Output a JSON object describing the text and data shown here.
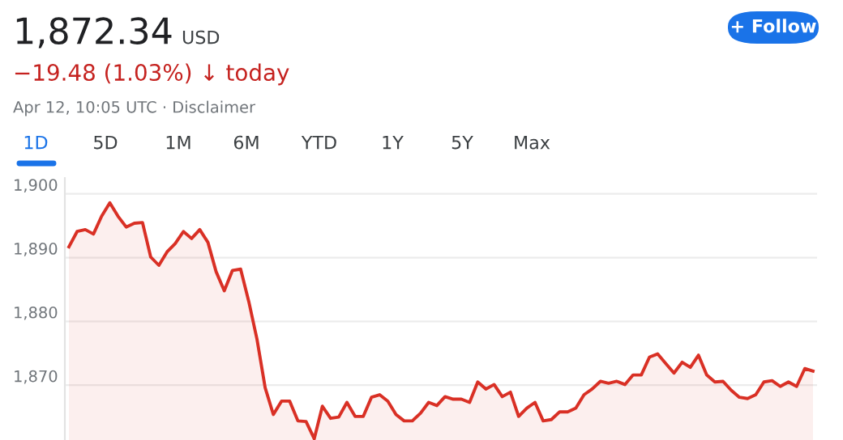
{
  "chart_data": {
    "type": "area",
    "annotations": [
      "1,872.34",
      "USD",
      "−19.48 (1.03%) ↓ today",
      "Apr 12, 10:05 UTC · Disclaimer",
      "1D",
      "5D",
      "1M",
      "6M",
      "YTD",
      "1Y",
      "5Y",
      "Max",
      "+ Follow"
    ],
    "categories": [
      null,
      null,
      null,
      null,
      null,
      null,
      null,
      null,
      null,
      null,
      null,
      null,
      null,
      null,
      null,
      null,
      null,
      null,
      null,
      null,
      null,
      null,
      null,
      null,
      null,
      null,
      null,
      null,
      null,
      null,
      null,
      null,
      null,
      null,
      null,
      null,
      null,
      null,
      null,
      null,
      null,
      null,
      null,
      null,
      null,
      null,
      null,
      null,
      null,
      null,
      null,
      null,
      null,
      null,
      null,
      null,
      null,
      null,
      null,
      null,
      null,
      null,
      null,
      null,
      null,
      null,
      null,
      null,
      null,
      null,
      null,
      null,
      null,
      null,
      null,
      null,
      null,
      null,
      null,
      null,
      null,
      null,
      null,
      null,
      null,
      null,
      null,
      null,
      null,
      null,
      null,
      null
    ],
    "series": [
      {
        "color": "#d93025",
        "values": [
          1891.7,
          1894.1,
          1894.4,
          1893.7,
          1896.5,
          1898.6,
          1896.5,
          1894.8,
          1895.4,
          1895.5,
          1890.1,
          1888.8,
          1890.9,
          1892.2,
          1894.1,
          1893.0,
          1894.4,
          1892.4,
          1887.8,
          1884.8,
          1888.0,
          1888.2,
          1883.1,
          1877.2,
          1869.6,
          1865.4,
          1867.5,
          1867.5,
          1864.4,
          1864.3,
          1861.6,
          1866.7,
          1864.8,
          1865.0,
          1867.3,
          1865.1,
          1865.1,
          1868.1,
          1868.5,
          1867.5,
          1865.4,
          1864.4,
          1864.4,
          1865.6,
          1867.3,
          1866.8,
          1868.2,
          1867.8,
          1867.8,
          1867.3,
          1870.5,
          1869.4,
          1870.1,
          1868.2,
          1868.9,
          1865.1,
          1866.4,
          1867.3,
          1864.4,
          1864.6,
          1865.8,
          1865.8,
          1866.4,
          1868.5,
          1869.4,
          1870.6,
          1870.3,
          1870.6,
          1870.1,
          1871.6,
          1871.6,
          1874.4,
          1874.9,
          1873.4,
          1871.9,
          1873.6,
          1872.8,
          1874.7,
          1871.6,
          1870.5,
          1870.6,
          1869.2,
          1868.1,
          1867.9,
          1868.5,
          1870.5,
          1870.7,
          1869.8,
          1870.5,
          1869.8,
          1872.6,
          1872.2
        ]
      }
    ],
    "ylim": [
      1861.4,
      1902.5
    ],
    "yticks": [
      {
        "value": 1870,
        "label": "1,870"
      },
      {
        "value": 1880,
        "label": "1,880"
      },
      {
        "value": 1890,
        "label": "1,890"
      },
      {
        "value": 1900,
        "label": "1,900"
      }
    ],
    "grid": "y"
  }
}
